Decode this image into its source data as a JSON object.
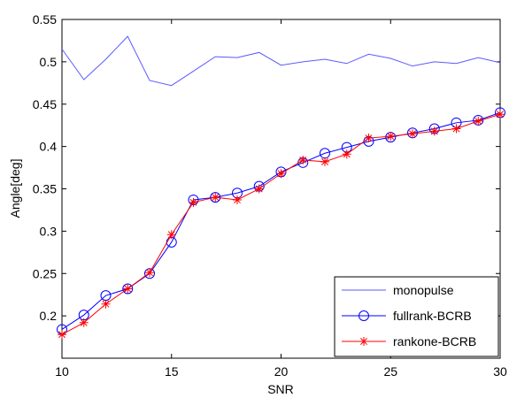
{
  "chart_data": {
    "type": "line",
    "x_label": "SNR",
    "y_label": "Angle[deg]",
    "x": [
      10,
      11,
      12,
      13,
      14,
      15,
      16,
      17,
      18,
      19,
      20,
      21,
      22,
      23,
      24,
      25,
      26,
      27,
      28,
      29,
      30
    ],
    "xlim": [
      10,
      30
    ],
    "xticks": [
      10,
      15,
      20,
      25,
      30
    ],
    "ylim": [
      0.15,
      0.55
    ],
    "yticks": [
      0.2,
      0.25,
      0.3,
      0.35,
      0.4,
      0.45,
      0.5,
      0.55
    ],
    "legend": "lower right",
    "series": [
      {
        "name": "monopulse",
        "color": "#5a5aff",
        "marker": "none",
        "values": [
          0.515,
          0.479,
          0.503,
          0.53,
          0.478,
          0.472,
          0.489,
          0.506,
          0.505,
          0.511,
          0.496,
          0.5,
          0.503,
          0.498,
          0.509,
          0.504,
          0.495,
          0.5,
          0.498,
          0.505,
          0.499
        ]
      },
      {
        "name": "fullrank-BCRB",
        "color": "#0000ff",
        "marker": "circle",
        "values": [
          0.184,
          0.201,
          0.224,
          0.232,
          0.25,
          0.287,
          0.337,
          0.34,
          0.345,
          0.353,
          0.37,
          0.381,
          0.392,
          0.399,
          0.406,
          0.411,
          0.416,
          0.421,
          0.428,
          0.431,
          0.44
        ]
      },
      {
        "name": "rankone-BCRB",
        "color": "#ff0000",
        "marker": "asterisk",
        "values": [
          0.178,
          0.192,
          0.214,
          0.232,
          0.251,
          0.296,
          0.334,
          0.34,
          0.337,
          0.35,
          0.368,
          0.384,
          0.382,
          0.391,
          0.41,
          0.412,
          0.415,
          0.418,
          0.421,
          0.43,
          0.438
        ]
      }
    ]
  }
}
